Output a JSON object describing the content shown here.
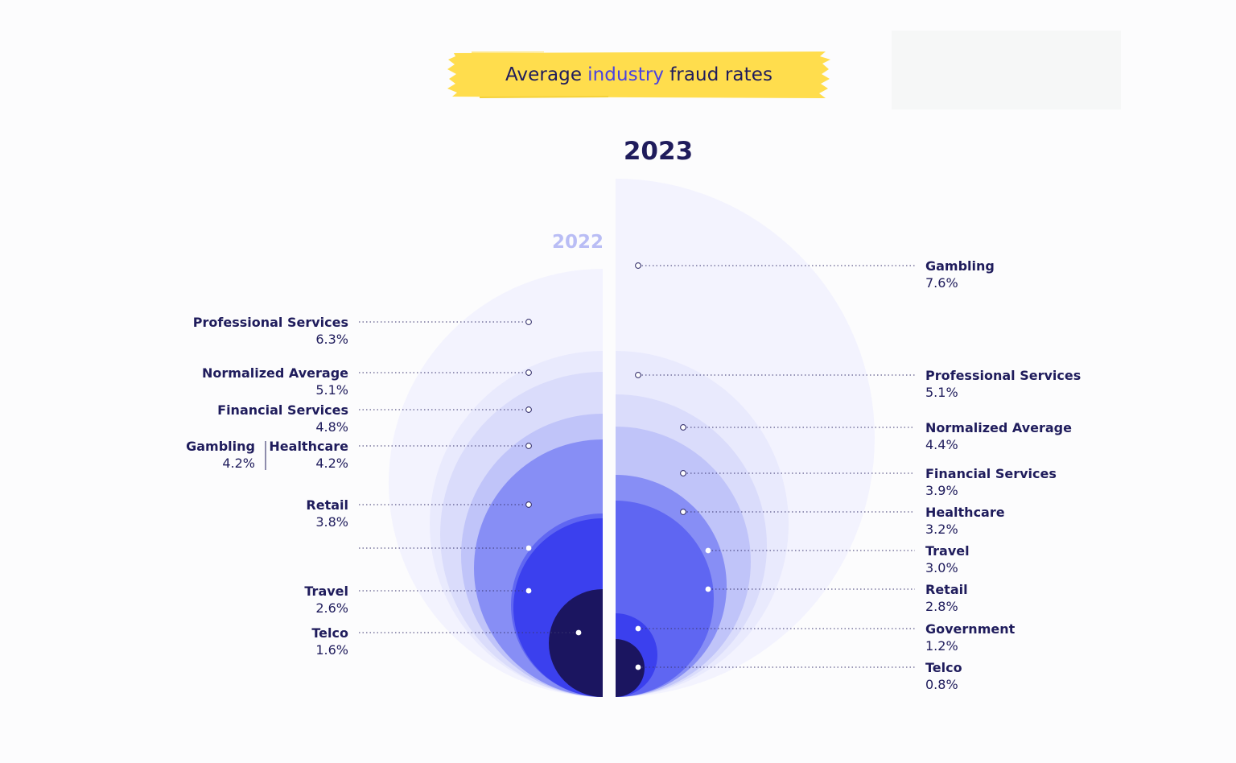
{
  "header": {
    "title_before": "Average",
    "title_accent": "industry",
    "title_after": "fraud rates"
  },
  "colors": {
    "brush": "#ffdd4d",
    "accent": "#4a43e0",
    "text": "#1f1c5c",
    "year_2022": "#b9bdf5",
    "scale": [
      "#f3f3fe",
      "#e9eafd",
      "#dadcfb",
      "#c0c4f9",
      "#a7adf7",
      "#878ef5",
      "#5f66f2",
      "#3b40ee",
      "#1b1560"
    ]
  },
  "chart_data": [
    {
      "type": "bubble",
      "panel": "left",
      "title": "2022",
      "unit": "%",
      "series": [
        {
          "category": "Professional Services",
          "value": 6.3,
          "label": "6.3%"
        },
        {
          "category": "Normalized Average",
          "value": 5.1,
          "label": "5.1%"
        },
        {
          "category": "Financial Services",
          "value": 4.8,
          "label": "4.8%"
        },
        {
          "category": "Gambling",
          "value": 4.2,
          "label": "4.2%"
        },
        {
          "category": "Healthcare",
          "value": 4.2,
          "label": "4.2%"
        },
        {
          "category": "Retail",
          "value": 3.8,
          "label": "3.8%"
        },
        {
          "category": "",
          "value": null,
          "label": ""
        },
        {
          "category": "Travel",
          "value": 2.6,
          "label": "2.6%"
        },
        {
          "category": "Telco",
          "value": 1.6,
          "label": "1.6%"
        }
      ]
    },
    {
      "type": "bubble",
      "panel": "right",
      "title": "2023",
      "unit": "%",
      "series": [
        {
          "category": "Gambling",
          "value": 7.6,
          "label": "7.6%"
        },
        {
          "category": "Professional Services",
          "value": 5.1,
          "label": "5.1%"
        },
        {
          "category": "Normalized Average",
          "value": 4.4,
          "label": "4.4%"
        },
        {
          "category": "Financial Services",
          "value": 3.9,
          "label": "3.9%"
        },
        {
          "category": "Healthcare",
          "value": 3.2,
          "label": "3.2%"
        },
        {
          "category": "Travel",
          "value": 3.0,
          "label": "3.0%"
        },
        {
          "category": "Retail",
          "value": 2.8,
          "label": "2.8%"
        },
        {
          "category": "Government",
          "value": 1.2,
          "label": "1.2%"
        },
        {
          "category": "Telco",
          "value": 0.8,
          "label": "0.8%"
        }
      ]
    }
  ]
}
